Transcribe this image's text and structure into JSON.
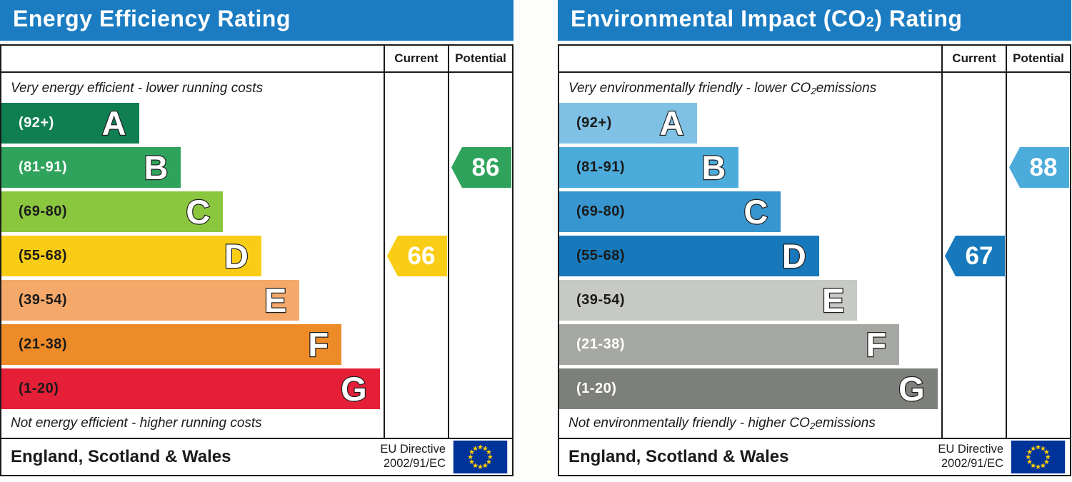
{
  "theme": {
    "header_blue": "#1b7cc2",
    "flag_blue": "#003399",
    "flag_star_yellow": "#ffcc00",
    "marker_text": "#ffffff"
  },
  "charts": [
    {
      "title": {
        "prefix": "Energy Efficiency Rating",
        "sub": "",
        "suffix": ""
      },
      "columns": {
        "current": "Current",
        "potential": "Potential"
      },
      "top_note": {
        "prefix": "Very energy efficient - lower running costs",
        "sub": "",
        "suffix": ""
      },
      "bottom_note": {
        "prefix": "Not energy efficient - higher running costs",
        "sub": "",
        "suffix": ""
      },
      "bands": [
        {
          "letter": "A",
          "range": "(92+)",
          "color": "#0f7f52",
          "range_color": "#ffffff",
          "width_pct": 36
        },
        {
          "letter": "B",
          "range": "(81-91)",
          "color": "#2fa35c",
          "range_color": "#ffffff",
          "width_pct": 47
        },
        {
          "letter": "C",
          "range": "(69-80)",
          "color": "#8bc63f",
          "range_color": "#1a1a1a",
          "width_pct": 58
        },
        {
          "letter": "D",
          "range": "(55-68)",
          "color": "#f9cd15",
          "range_color": "#1a1a1a",
          "width_pct": 68
        },
        {
          "letter": "E",
          "range": "(39-54)",
          "color": "#f4a96a",
          "range_color": "#1a1a1a",
          "width_pct": 78
        },
        {
          "letter": "F",
          "range": "(21-38)",
          "color": "#ee8b29",
          "range_color": "#1a1a1a",
          "width_pct": 89
        },
        {
          "letter": "G",
          "range": "(1-20)",
          "color": "#e41f37",
          "range_color": "#1a1a1a",
          "width_pct": 99
        }
      ],
      "current": {
        "value": "66",
        "band": "D",
        "band_index": 3,
        "color": "#f9cd15"
      },
      "potential": {
        "value": "86",
        "band": "B",
        "band_index": 1,
        "color": "#2fa35c"
      },
      "footer": {
        "region": "England, Scotland & Wales",
        "directive_line1": "EU Directive",
        "directive_line2": "2002/91/EC"
      }
    },
    {
      "title": {
        "prefix": "Environmental Impact (CO",
        "sub": "2",
        "suffix": ") Rating"
      },
      "columns": {
        "current": "Current",
        "potential": "Potential"
      },
      "top_note": {
        "prefix": "Very environmentally friendly - lower CO",
        "sub": "2",
        "suffix": " emissions"
      },
      "bottom_note": {
        "prefix": "Not environmentally friendly - higher CO",
        "sub": "2",
        "suffix": " emissions"
      },
      "bands": [
        {
          "letter": "A",
          "range": "(92+)",
          "color": "#7fc1e5",
          "range_color": "#1a1a1a",
          "width_pct": 36
        },
        {
          "letter": "B",
          "range": "(81-91)",
          "color": "#4babda",
          "range_color": "#1a1a1a",
          "width_pct": 47
        },
        {
          "letter": "C",
          "range": "(69-80)",
          "color": "#3795cf",
          "range_color": "#1a1a1a",
          "width_pct": 58
        },
        {
          "letter": "D",
          "range": "(55-68)",
          "color": "#1779bc",
          "range_color": "#1a1a1a",
          "width_pct": 68
        },
        {
          "letter": "E",
          "range": "(39-54)",
          "color": "#c7c9c4",
          "range_color": "#1a1a1a",
          "width_pct": 78
        },
        {
          "letter": "F",
          "range": "(21-38)",
          "color": "#a5a7a2",
          "range_color": "#ffffff",
          "width_pct": 89
        },
        {
          "letter": "G",
          "range": "(1-20)",
          "color": "#7c7f7a",
          "range_color": "#ffffff",
          "width_pct": 99
        }
      ],
      "current": {
        "value": "67",
        "band": "D",
        "band_index": 3,
        "color": "#1779bc"
      },
      "potential": {
        "value": "88",
        "band": "B",
        "band_index": 1,
        "color": "#4babda"
      },
      "footer": {
        "region": "England, Scotland & Wales",
        "directive_line1": "EU Directive",
        "directive_line2": "2002/91/EC"
      }
    }
  ],
  "chart_data": [
    {
      "type": "bar",
      "orientation": "horizontal",
      "title": "Energy Efficiency Rating",
      "categories": [
        "A",
        "B",
        "C",
        "D",
        "E",
        "F",
        "G"
      ],
      "band_ranges": [
        "92+",
        "81-91",
        "69-80",
        "55-68",
        "39-54",
        "21-38",
        "1-20"
      ],
      "band_colors": [
        "#0f7f52",
        "#2fa35c",
        "#8bc63f",
        "#f9cd15",
        "#f4a96a",
        "#ee8b29",
        "#e41f37"
      ],
      "bar_lengths_pct": [
        36,
        47,
        58,
        68,
        78,
        89,
        99
      ],
      "scale": [
        1,
        100
      ],
      "current": {
        "value": 66,
        "band": "D"
      },
      "potential": {
        "value": 86,
        "band": "B"
      },
      "notes": [
        "Very energy efficient - lower running costs",
        "Not energy efficient - higher running costs"
      ],
      "region": "England, Scotland & Wales",
      "directive": "EU Directive 2002/91/EC"
    },
    {
      "type": "bar",
      "orientation": "horizontal",
      "title": "Environmental Impact (CO2) Rating",
      "categories": [
        "A",
        "B",
        "C",
        "D",
        "E",
        "F",
        "G"
      ],
      "band_ranges": [
        "92+",
        "81-91",
        "69-80",
        "55-68",
        "39-54",
        "21-38",
        "1-20"
      ],
      "band_colors": [
        "#7fc1e5",
        "#4babda",
        "#3795cf",
        "#1779bc",
        "#c7c9c4",
        "#a5a7a2",
        "#7c7f7a"
      ],
      "bar_lengths_pct": [
        36,
        47,
        58,
        68,
        78,
        89,
        99
      ],
      "scale": [
        1,
        100
      ],
      "current": {
        "value": 67,
        "band": "D"
      },
      "potential": {
        "value": 88,
        "band": "B"
      },
      "notes": [
        "Very environmentally friendly - lower CO2 emissions",
        "Not environmentally friendly - higher CO2 emissions"
      ],
      "region": "England, Scotland & Wales",
      "directive": "EU Directive 2002/91/EC"
    }
  ]
}
